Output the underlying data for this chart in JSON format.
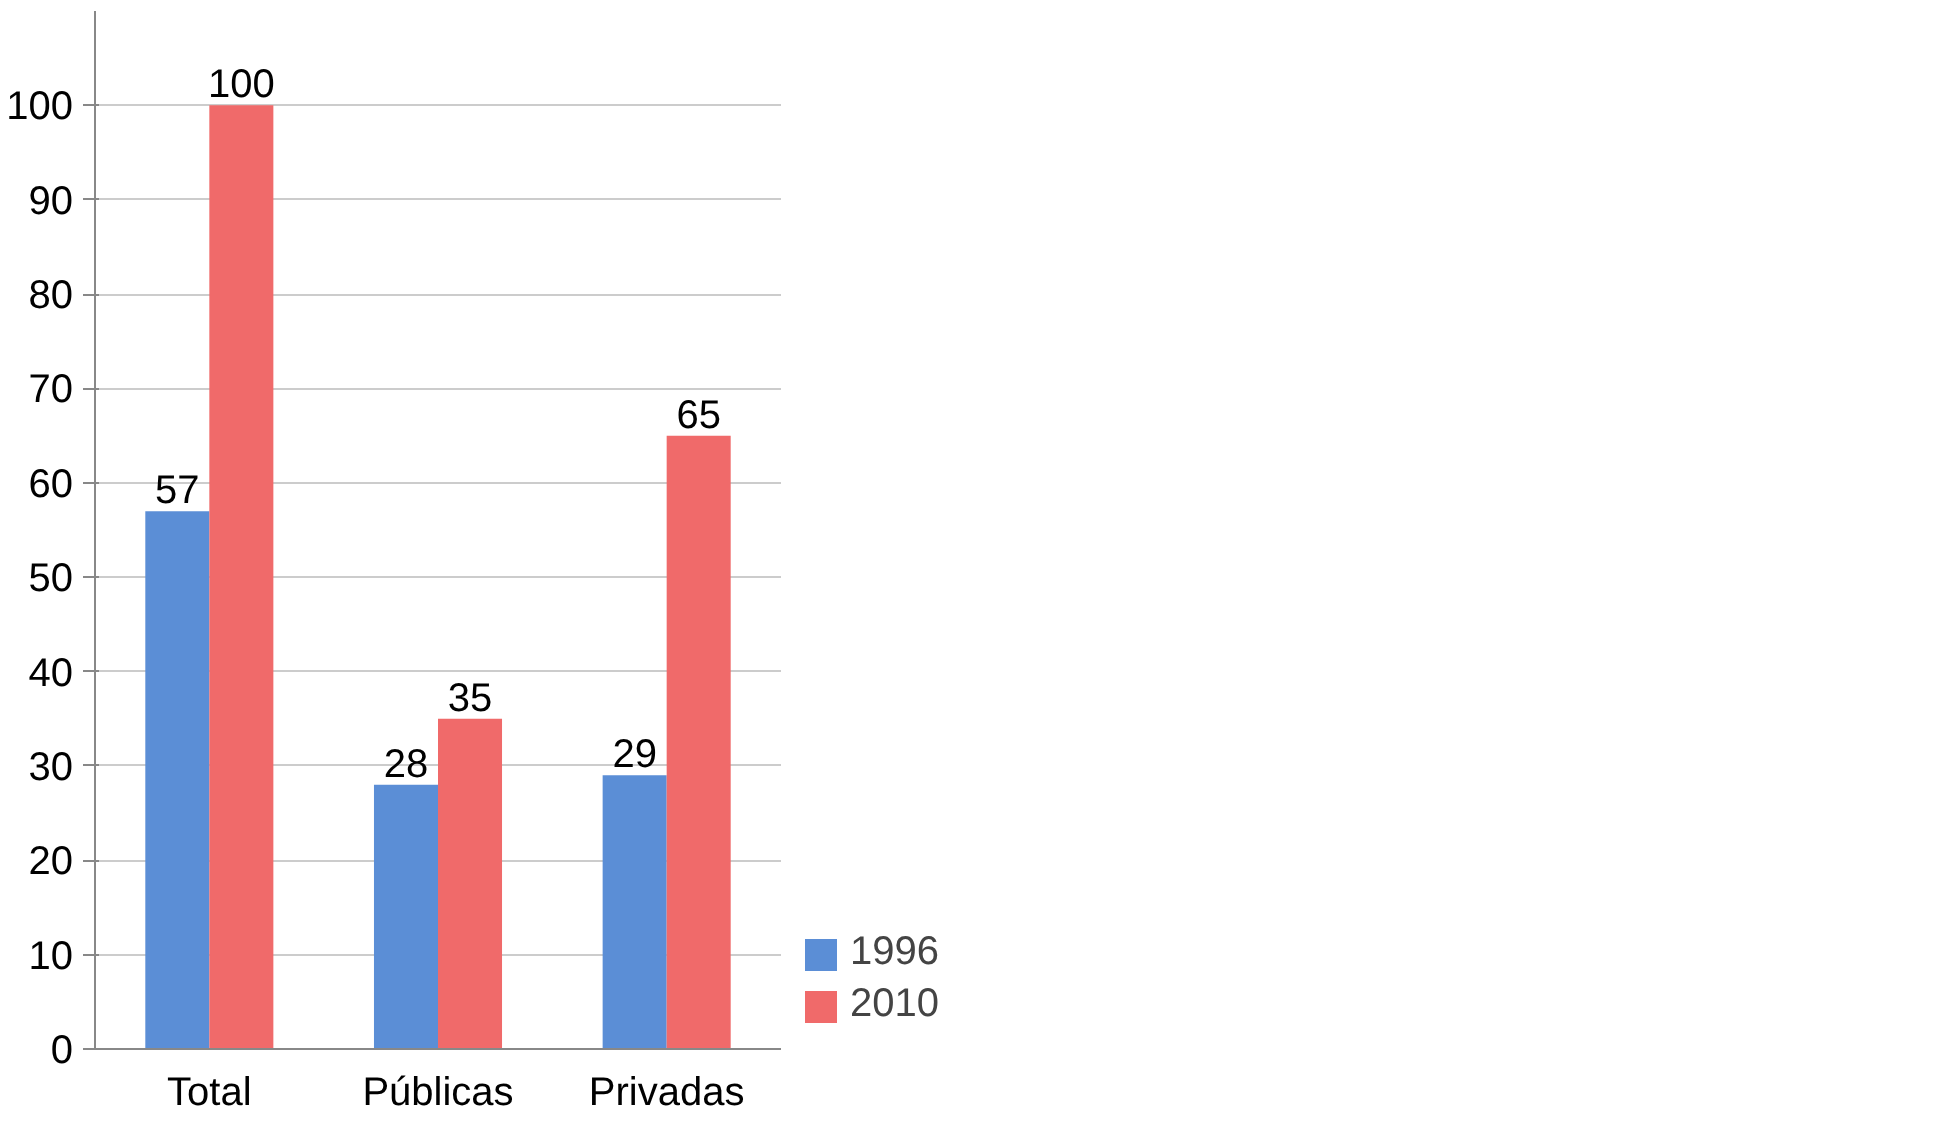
{
  "chart_data": {
    "type": "bar",
    "categories": [
      "Total",
      "Públicas",
      "Privadas"
    ],
    "series": [
      {
        "name": "1996",
        "color": "#5b8ed6",
        "values": [
          57,
          28,
          29
        ]
      },
      {
        "name": "2010",
        "color": "#f06a6a",
        "values": [
          100,
          35,
          65
        ]
      }
    ],
    "ylim": [
      0,
      110
    ],
    "yticks": [
      0,
      10,
      20,
      30,
      40,
      50,
      60,
      70,
      80,
      90,
      100
    ],
    "grid": "y",
    "legend": "bottom right",
    "data_labels": true
  }
}
